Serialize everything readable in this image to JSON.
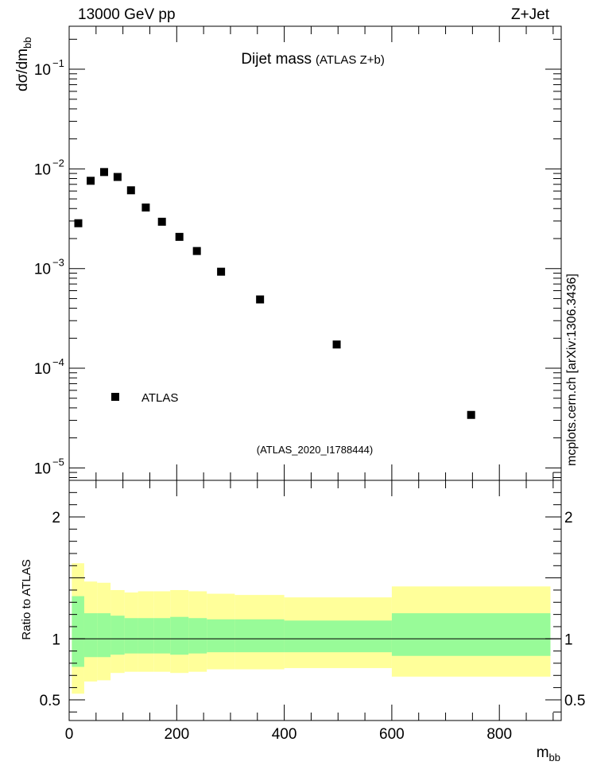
{
  "header": {
    "left": "13000 GeV pp",
    "right": "Z+Jet"
  },
  "side_label": "mcplots.cern.ch [arXiv:1306.3436]",
  "chart_data": [
    {
      "type": "scatter",
      "title": "Dijet mass",
      "subtitle": "(ATLAS Z+b)",
      "ylabel": "dσ/dm",
      "ylabel_sub": "bb",
      "yscale": "log",
      "ylim": [
        7.5e-06,
        0.27
      ],
      "xlim": [
        0,
        915
      ],
      "y_tick_labels": [
        {
          "value": 0.1,
          "mant": "10",
          "exp": "−1"
        },
        {
          "value": 0.01,
          "mant": "10",
          "exp": "−2"
        },
        {
          "value": 0.001,
          "mant": "10",
          "exp": "−3"
        },
        {
          "value": 0.0001,
          "mant": "10",
          "exp": "−4"
        },
        {
          "value": 1e-05,
          "mant": "10",
          "exp": "−5"
        }
      ],
      "legend": {
        "position": "bottom-left",
        "entries": [
          "ATLAS"
        ]
      },
      "annotation": "(ATLAS_2020_I1788444)",
      "series": [
        {
          "name": "ATLAS",
          "x": [
            17,
            40,
            65,
            90,
            115,
            142.5,
            172.5,
            205,
            237.5,
            282.5,
            355,
            497.5,
            747.5
          ],
          "y": [
            0.00285,
            0.0076,
            0.0093,
            0.0083,
            0.0061,
            0.0041,
            0.00295,
            0.00208,
            0.0015,
            0.00093,
            0.00049,
            0.000173,
            3.4e-05
          ]
        }
      ]
    },
    {
      "type": "area",
      "ylabel": "Ratio to ATLAS",
      "xlabel": "m",
      "xlabel_sub": "bb",
      "xlim": [
        0,
        915
      ],
      "ylim": [
        0.33,
        2.3
      ],
      "x_ticks": [
        0,
        200,
        400,
        600,
        800
      ],
      "y_ticks": [
        0.5,
        1,
        2
      ],
      "y_tick_labels": [
        "0.5",
        "1",
        "2"
      ],
      "reference_line": 1,
      "bins": [
        {
          "x0": 5,
          "x1": 28,
          "inner_lo": 0.77,
          "inner_hi": 1.35,
          "outer_lo": 0.55,
          "outer_hi": 1.62
        },
        {
          "x0": 28,
          "x1": 52,
          "inner_lo": 0.85,
          "inner_hi": 1.21,
          "outer_lo": 0.65,
          "outer_hi": 1.47
        },
        {
          "x0": 52,
          "x1": 77,
          "inner_lo": 0.85,
          "inner_hi": 1.21,
          "outer_lo": 0.66,
          "outer_hi": 1.46
        },
        {
          "x0": 77,
          "x1": 103,
          "inner_lo": 0.87,
          "inner_hi": 1.19,
          "outer_lo": 0.72,
          "outer_hi": 1.4
        },
        {
          "x0": 103,
          "x1": 128,
          "inner_lo": 0.88,
          "inner_hi": 1.17,
          "outer_lo": 0.73,
          "outer_hi": 1.38
        },
        {
          "x0": 128,
          "x1": 157,
          "inner_lo": 0.88,
          "inner_hi": 1.17,
          "outer_lo": 0.73,
          "outer_hi": 1.39
        },
        {
          "x0": 157,
          "x1": 188,
          "inner_lo": 0.88,
          "inner_hi": 1.17,
          "outer_lo": 0.73,
          "outer_hi": 1.39
        },
        {
          "x0": 188,
          "x1": 222,
          "inner_lo": 0.87,
          "inner_hi": 1.18,
          "outer_lo": 0.72,
          "outer_hi": 1.4
        },
        {
          "x0": 222,
          "x1": 256,
          "inner_lo": 0.88,
          "inner_hi": 1.17,
          "outer_lo": 0.73,
          "outer_hi": 1.39
        },
        {
          "x0": 256,
          "x1": 308,
          "inner_lo": 0.89,
          "inner_hi": 1.16,
          "outer_lo": 0.75,
          "outer_hi": 1.37
        },
        {
          "x0": 308,
          "x1": 400,
          "inner_lo": 0.89,
          "inner_hi": 1.16,
          "outer_lo": 0.75,
          "outer_hi": 1.36
        },
        {
          "x0": 400,
          "x1": 600,
          "inner_lo": 0.89,
          "inner_hi": 1.15,
          "outer_lo": 0.76,
          "outer_hi": 1.34
        },
        {
          "x0": 600,
          "x1": 895,
          "inner_lo": 0.86,
          "inner_hi": 1.21,
          "outer_lo": 0.69,
          "outer_hi": 1.43
        }
      ]
    }
  ],
  "colors": {
    "inner_band": "#98fb98",
    "outer_band": "#ffff9a",
    "marker": "#000000",
    "frame": "#000000",
    "muted_text": "#999999",
    "side_text": "#7f7f7f"
  }
}
